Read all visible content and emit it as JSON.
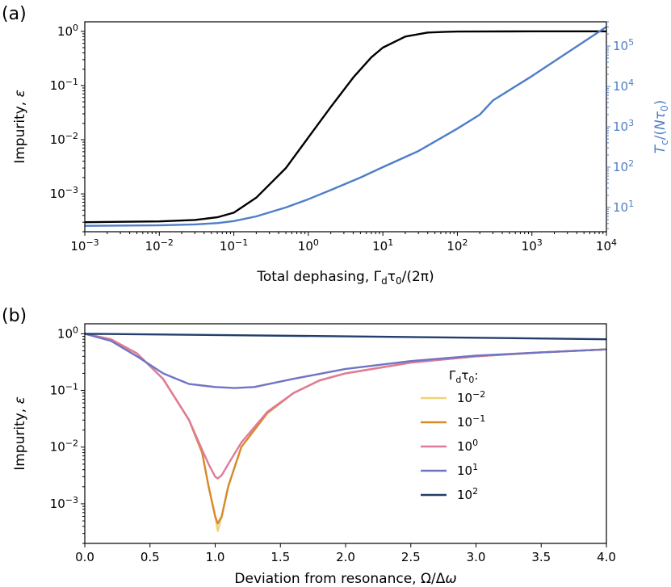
{
  "chart_data": [
    {
      "panel_label": "(a)",
      "type": "line",
      "xlabel": "Total dephasing, Γ_d τ_0/(2π)",
      "ylabel_left": "Impurity, ε",
      "ylabel_right": "T_c/(N τ_0)",
      "x_scale": "log",
      "y_scale": "log",
      "xlim": [
        0.001,
        10000
      ],
      "ylim_left": [
        0.0002,
        1.5
      ],
      "ylim_right": [
        2.5,
        400000
      ],
      "x_ticks": [
        "10^-3",
        "10^-2",
        "10^-1",
        "10^0",
        "10^1",
        "10^2",
        "10^3",
        "10^4"
      ],
      "y_ticks_left": [
        "10^0",
        "10^-1",
        "10^-2",
        "10^-3"
      ],
      "y_ticks_right": [
        "10^5",
        "10^4",
        "10^3",
        "10^2",
        "10^1"
      ],
      "series": [
        {
          "axis": "left",
          "color": "#000000",
          "x": [
            0.001,
            0.01,
            0.03,
            0.06,
            0.1,
            0.2,
            0.5,
            1,
            2,
            4,
            7,
            10,
            20,
            40,
            70,
            100,
            1000,
            10000
          ],
          "y": [
            0.0003,
            0.00031,
            0.00033,
            0.00037,
            0.00045,
            0.00085,
            0.003,
            0.011,
            0.04,
            0.14,
            0.33,
            0.5,
            0.8,
            0.95,
            0.98,
            0.99,
            1.0,
            1.0
          ]
        },
        {
          "axis": "right",
          "color": "#4f7ec7",
          "x": [
            0.001,
            0.01,
            0.03,
            0.06,
            0.1,
            0.2,
            0.5,
            1,
            2,
            5,
            10,
            30,
            100,
            200,
            300,
            1000,
            10000
          ],
          "y": [
            3.5,
            3.6,
            3.8,
            4.1,
            4.6,
            6.0,
            10,
            16,
            27,
            55,
            100,
            250,
            900,
            2000,
            4500,
            18000,
            300000
          ]
        }
      ]
    },
    {
      "panel_label": "(b)",
      "type": "line",
      "xlabel": "Deviation from resonance, Ω/Δω",
      "ylabel": "Impurity, ε",
      "x_scale": "linear",
      "y_scale": "log",
      "xlim": [
        0,
        4
      ],
      "ylim": [
        0.0002,
        1.5
      ],
      "x_ticks": [
        "0.0",
        "0.5",
        "1.0",
        "1.5",
        "2.0",
        "2.5",
        "3.0",
        "3.5",
        "4.0"
      ],
      "y_ticks": [
        "10^0",
        "10^-1",
        "10^-2",
        "10^-3"
      ],
      "legend_title": "Γ_d τ_0:",
      "legend_position": "center-right",
      "series": [
        {
          "name": "10^-2",
          "color": "#efd279",
          "x": [
            0,
            0.2,
            0.4,
            0.6,
            0.8,
            0.9,
            0.95,
            1.0,
            1.02,
            1.05,
            1.1,
            1.2,
            1.4,
            1.6,
            1.8,
            2.0,
            2.5,
            3.0,
            3.5,
            4.0
          ],
          "y": [
            1.0,
            0.8,
            0.45,
            0.16,
            0.03,
            0.008,
            0.002,
            0.0006,
            0.00033,
            0.0006,
            0.002,
            0.01,
            0.04,
            0.09,
            0.15,
            0.2,
            0.31,
            0.4,
            0.47,
            0.53
          ]
        },
        {
          "name": "10^-1",
          "color": "#d58a2c",
          "x": [
            0,
            0.2,
            0.4,
            0.6,
            0.8,
            0.9,
            0.95,
            1.0,
            1.02,
            1.05,
            1.1,
            1.2,
            1.4,
            1.6,
            1.8,
            2.0,
            2.5,
            3.0,
            3.5,
            4.0
          ],
          "y": [
            1.0,
            0.8,
            0.45,
            0.16,
            0.03,
            0.008,
            0.002,
            0.0006,
            0.00045,
            0.0006,
            0.002,
            0.01,
            0.04,
            0.09,
            0.15,
            0.2,
            0.31,
            0.4,
            0.47,
            0.53
          ]
        },
        {
          "name": "10^0",
          "color": "#e07a9a",
          "x": [
            0,
            0.2,
            0.4,
            0.6,
            0.8,
            0.9,
            0.95,
            1.0,
            1.02,
            1.05,
            1.1,
            1.2,
            1.4,
            1.6,
            1.8,
            2.0,
            2.5,
            3.0,
            3.5,
            4.0
          ],
          "y": [
            1.0,
            0.8,
            0.45,
            0.16,
            0.03,
            0.009,
            0.005,
            0.003,
            0.0028,
            0.0032,
            0.005,
            0.012,
            0.042,
            0.09,
            0.15,
            0.2,
            0.31,
            0.4,
            0.47,
            0.53
          ]
        },
        {
          "name": "10^1",
          "color": "#7074c4",
          "x": [
            0,
            0.2,
            0.4,
            0.6,
            0.8,
            1.0,
            1.15,
            1.3,
            1.6,
            2.0,
            2.5,
            3.0,
            3.5,
            4.0
          ],
          "y": [
            1.0,
            0.75,
            0.4,
            0.2,
            0.13,
            0.115,
            0.11,
            0.115,
            0.16,
            0.24,
            0.33,
            0.41,
            0.47,
            0.53
          ]
        },
        {
          "name": "10^2",
          "color": "#233e6e",
          "x": [
            0,
            1,
            2,
            3,
            4
          ],
          "y": [
            1.0,
            0.95,
            0.9,
            0.85,
            0.8
          ]
        }
      ]
    }
  ]
}
